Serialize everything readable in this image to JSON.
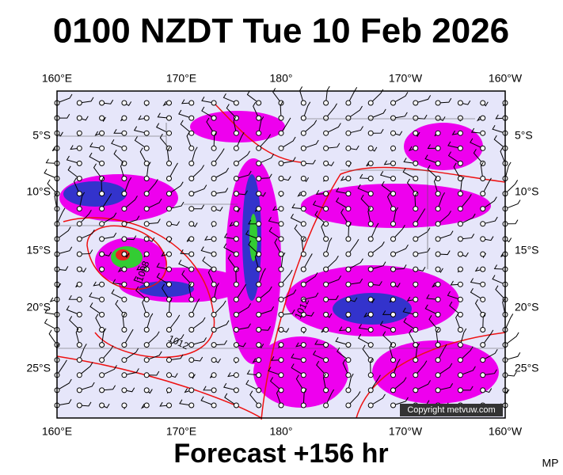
{
  "title": "0100 NZDT Tue 10 Feb 2026",
  "longitude_labels": [
    "160°E",
    "170°E",
    "180°",
    "170°W",
    "160°W"
  ],
  "latitude_labels": [
    "5°S",
    "10°S",
    "15°S",
    "20°S",
    "25°S"
  ],
  "isobar_labels": [
    "1008",
    "1012",
    "1012"
  ],
  "copyright": "Copyright metvuw.com",
  "footer": "Forecast +156 hr",
  "initials": "MP"
}
